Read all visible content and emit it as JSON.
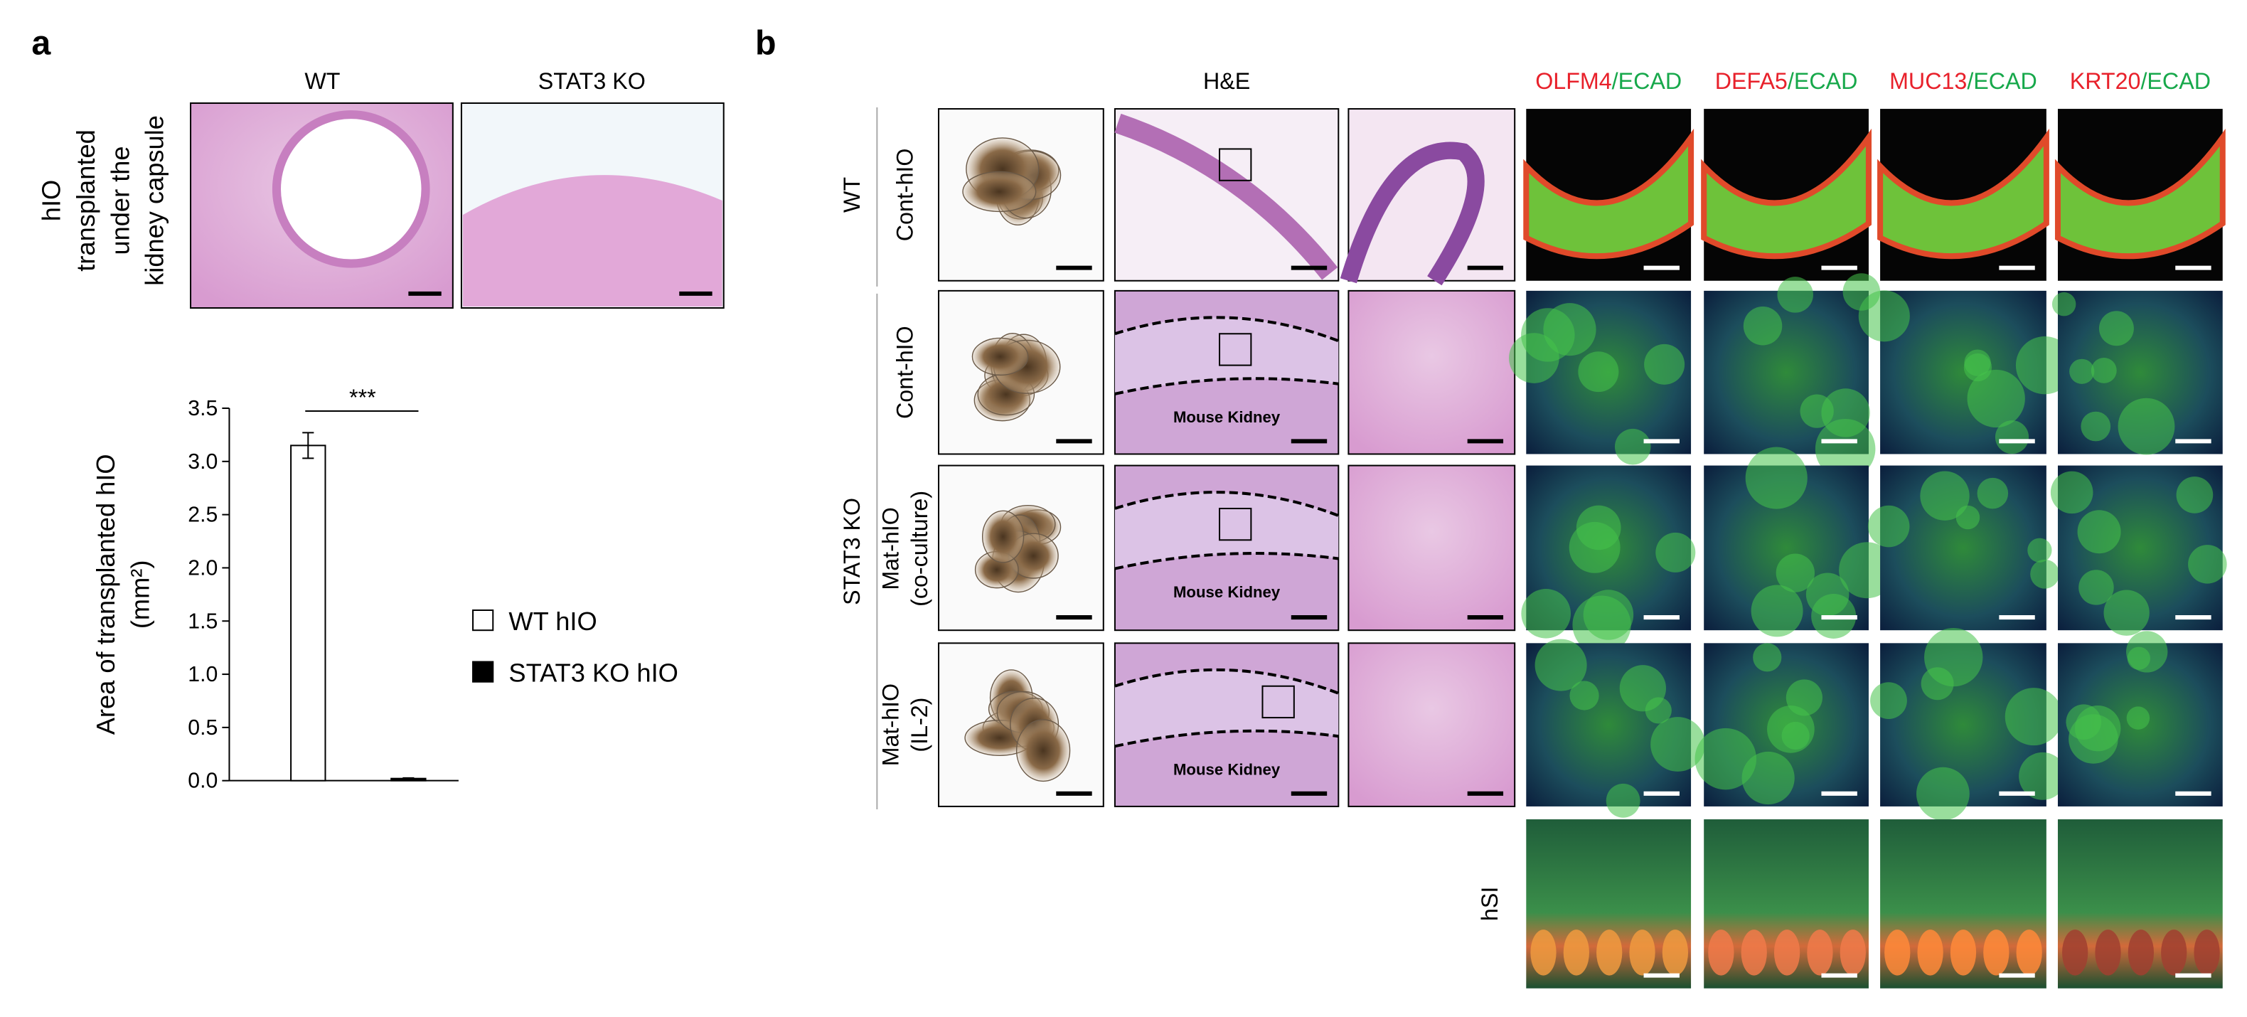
{
  "panel_a": {
    "label": "a",
    "columns": [
      "WT",
      "STAT3 KO"
    ],
    "row_label": [
      "hIO",
      "transplanted",
      "under the",
      "kidney capsule"
    ]
  },
  "chart_data": {
    "type": "bar",
    "ylabel": [
      "Area of transplanted hIO",
      "(mm²)"
    ],
    "series": [
      {
        "name": "WT hIO",
        "color": "#ffffff",
        "values": [
          3.15
        ],
        "errors": [
          0.12
        ]
      },
      {
        "name": "STAT3 KO hIO",
        "color": "#000000",
        "values": [
          0.02
        ],
        "errors": [
          0.005
        ]
      }
    ],
    "ylim": [
      0,
      3.5
    ],
    "yticks": [
      {
        "value": 0,
        "label": "0.0"
      },
      {
        "value": 0.5,
        "label": "0.5"
      },
      {
        "value": 1,
        "label": "1.0"
      },
      {
        "value": 1.5,
        "label": "1.5"
      },
      {
        "value": 2,
        "label": "2.0"
      },
      {
        "value": 2.5,
        "label": "2.5"
      },
      {
        "value": 3,
        "label": "3.0"
      },
      {
        "value": 3.5,
        "label": "3.5"
      }
    ],
    "annotation": "***",
    "grid": false,
    "legend": "right"
  },
  "panel_b": {
    "label": "b",
    "he_header": "H&E",
    "stains": [
      {
        "marker": "OLFM4",
        "sep": "/",
        "counter": "ECAD"
      },
      {
        "marker": "DEFA5",
        "sep": "/",
        "counter": "ECAD"
      },
      {
        "marker": "MUC13",
        "sep": "/",
        "counter": "ECAD"
      },
      {
        "marker": "KRT20",
        "sep": "/",
        "counter": "ECAD"
      }
    ],
    "marker_color": "#e8212b",
    "counter_color": "#17a84b",
    "groups": [
      "WT",
      "STAT3 KO",
      "hSI"
    ],
    "rows": [
      [
        "Cont-hIO"
      ],
      [
        "Cont-hIO"
      ],
      [
        "Mat-hIO",
        "(co-culture)"
      ],
      [
        "Mat-hIO",
        "(IL-2)"
      ]
    ],
    "he_annotations": [
      "Mouse Kidney",
      "Mouse Kidney",
      "Mouse Kidney"
    ]
  }
}
